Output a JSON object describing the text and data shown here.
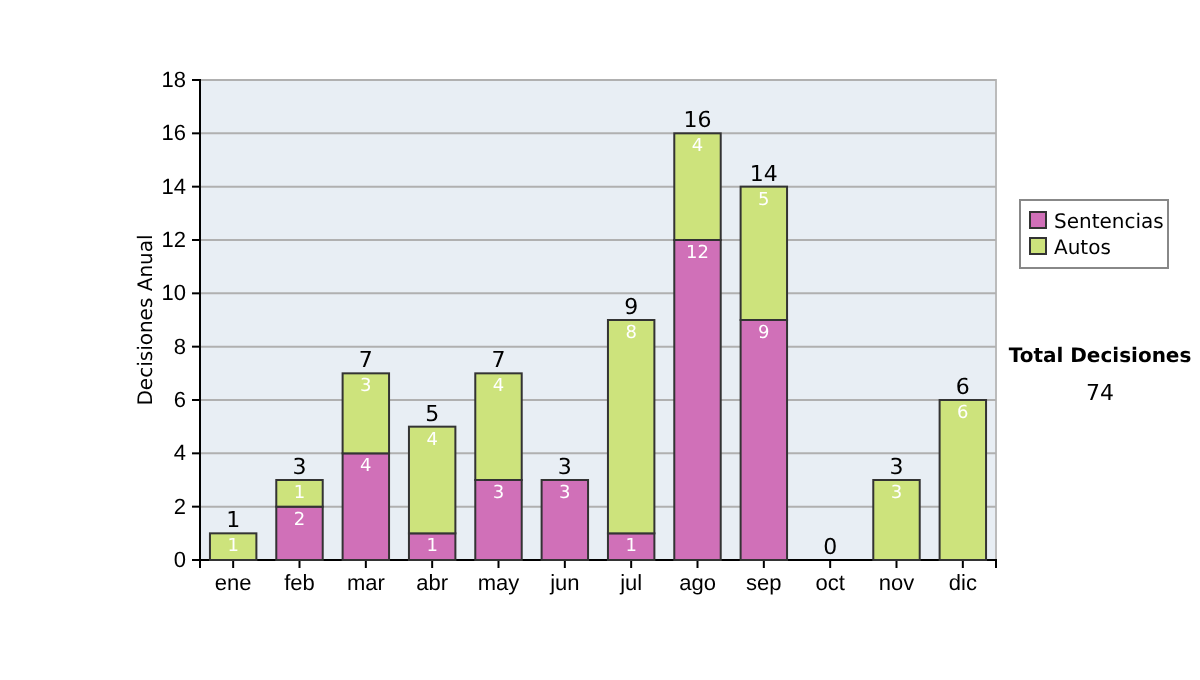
{
  "chart_data": {
    "type": "bar",
    "stacked": true,
    "ylabel": "Decisiones Anual",
    "categories": [
      "ene",
      "feb",
      "mar",
      "abr",
      "may",
      "jun",
      "jul",
      "ago",
      "sep",
      "oct",
      "nov",
      "dic"
    ],
    "series": [
      {
        "name": "Sentencias",
        "color": "#d070b8",
        "values": [
          0,
          2,
          4,
          1,
          3,
          3,
          1,
          12,
          9,
          0,
          0,
          0
        ],
        "value_labels": [
          null,
          "2",
          "4",
          "1",
          "3",
          "3",
          "1",
          "12",
          "9",
          null,
          null,
          null
        ]
      },
      {
        "name": "Autos",
        "color": "#cde37c",
        "values": [
          1,
          1,
          3,
          4,
          4,
          0,
          8,
          4,
          5,
          0,
          3,
          6
        ],
        "value_labels": [
          "1",
          "1",
          "3",
          "4",
          "4",
          null,
          "8",
          "4",
          "5",
          null,
          "3",
          "6"
        ]
      }
    ],
    "totals": [
      "1",
      "3",
      "7",
      "5",
      "7",
      "3",
      "9",
      "16",
      "14",
      "0",
      "3",
      "6"
    ],
    "ylim": [
      0,
      18
    ],
    "yticks": [
      0,
      2,
      4,
      6,
      8,
      10,
      12,
      14,
      16,
      18
    ],
    "grid": "y",
    "legend": "right",
    "annotations": [
      "Total Decisiones",
      "74"
    ]
  }
}
